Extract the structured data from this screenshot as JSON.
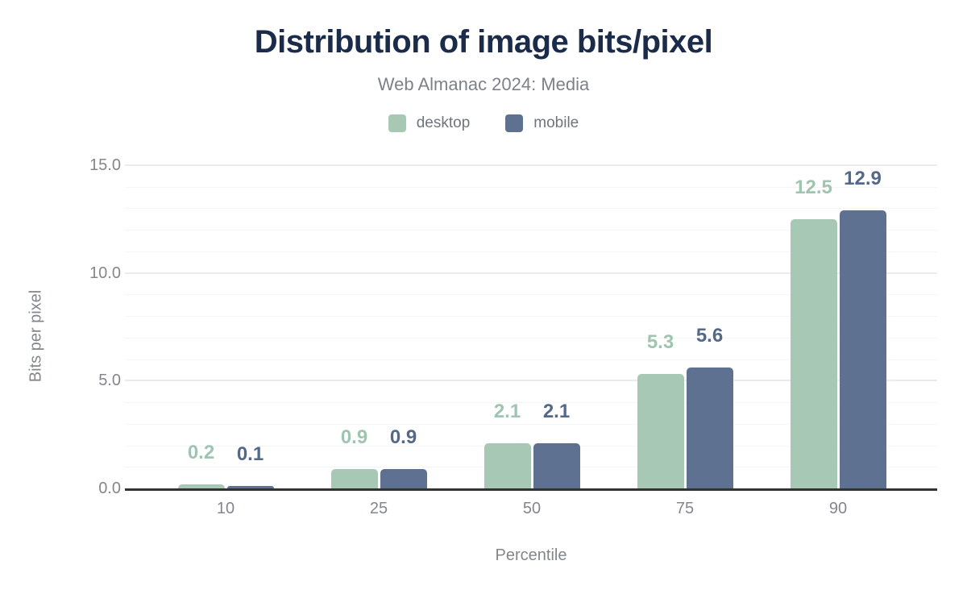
{
  "chart_data": {
    "type": "bar",
    "title": "Distribution of image bits/pixel",
    "subtitle": "Web Almanac 2024: Media",
    "categories": [
      "10",
      "25",
      "50",
      "75",
      "90"
    ],
    "series": [
      {
        "name": "desktop",
        "color": "#a6c8b5",
        "label_color": "#9fc4b0",
        "values": [
          0.2,
          0.9,
          2.1,
          5.3,
          12.5
        ]
      },
      {
        "name": "mobile",
        "color": "#5f7190",
        "label_color": "#54688a",
        "values": [
          0.1,
          0.9,
          2.1,
          5.6,
          12.9
        ]
      }
    ],
    "xlabel": "Percentile",
    "ylabel": "Bits per pixel",
    "ylim": [
      0,
      15
    ],
    "yticks": [
      {
        "value": 0,
        "label": "0.0"
      },
      {
        "value": 5,
        "label": "5.0"
      },
      {
        "value": 10,
        "label": "10.0"
      },
      {
        "value": 15,
        "label": "15.0"
      }
    ],
    "major_grid_step": 5,
    "minor_grid_step": 1,
    "grid": true,
    "legend_position": "top",
    "value_label_format": "one-decimal"
  },
  "colors": {
    "title": "#1b2b4a",
    "subtitle": "#7d8288",
    "axis_text": "#83878d",
    "legend_text": "#6f757c",
    "axis_line": "#333333",
    "grid_major": "#ebebeb",
    "grid_minor": "#f5f5f5",
    "background": "#ffffff"
  }
}
